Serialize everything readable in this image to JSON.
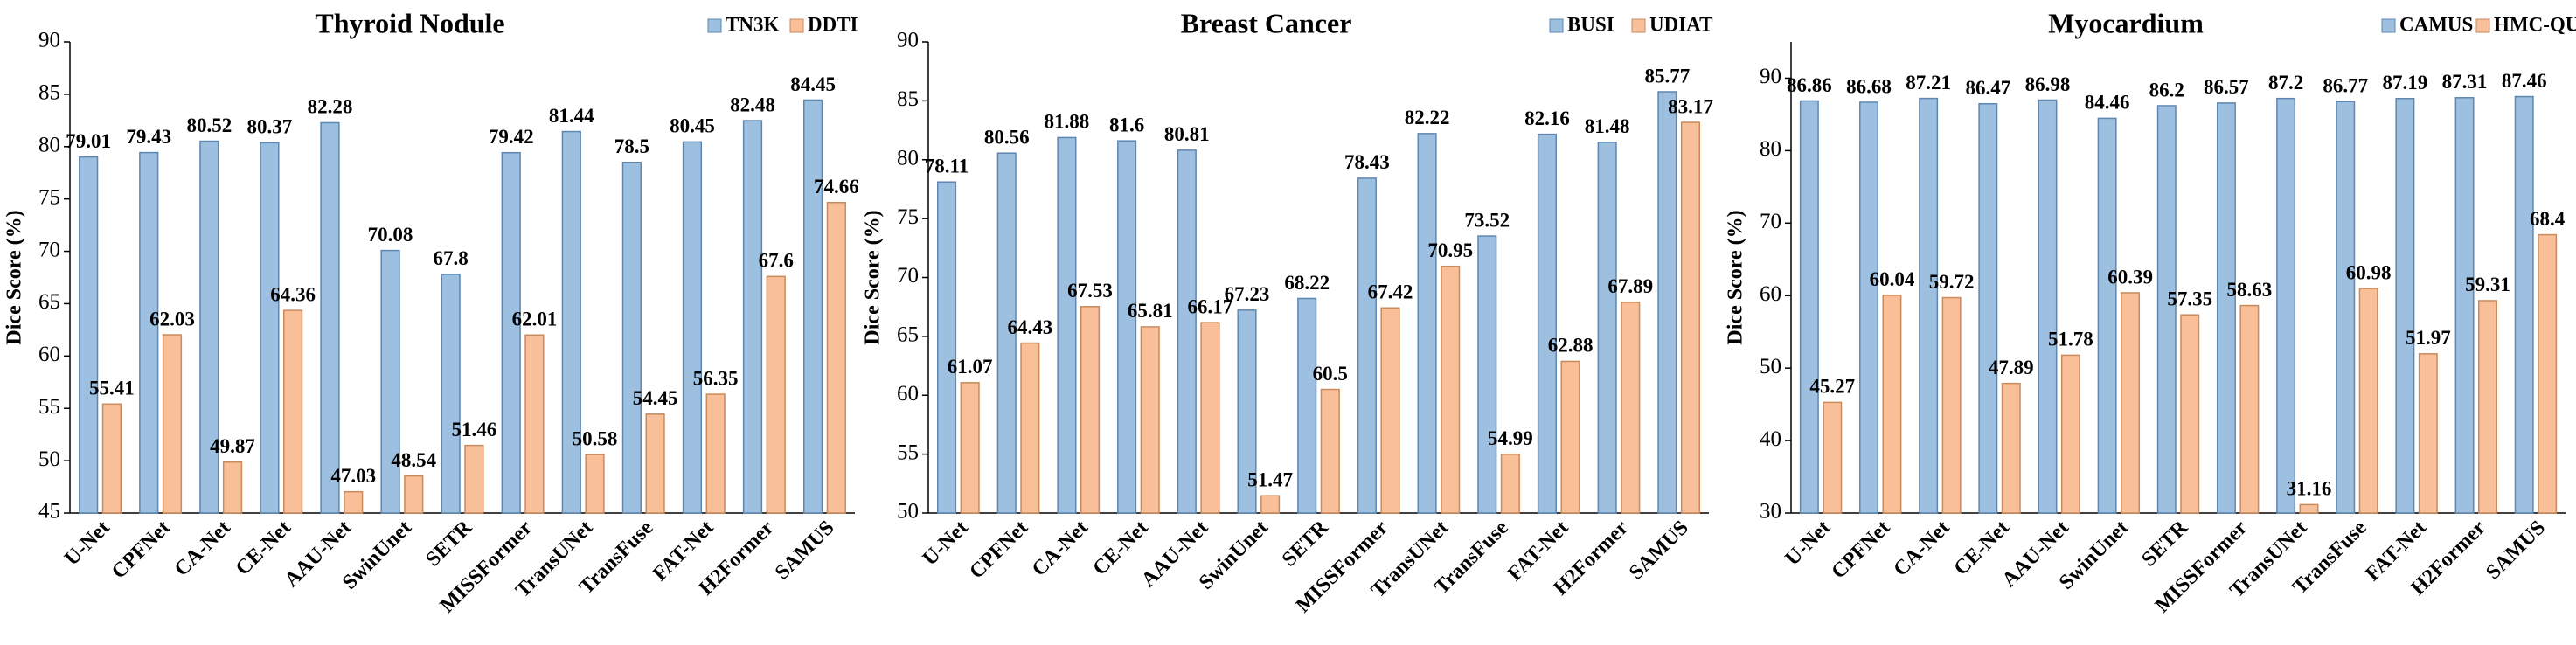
{
  "chart_data": [
    {
      "type": "bar",
      "title": "Thyroid Nodule",
      "y_label": "Dice Score (%)",
      "categories": [
        "U-Net",
        "CPFNet",
        "CA-Net",
        "CE-Net",
        "AAU-Net",
        "SwinUnet",
        "SETR",
        "MISSFormer",
        "TransUNet",
        "TransFuse",
        "FAT-Net",
        "H2Former",
        "SAMUS"
      ],
      "series": [
        {
          "name": "TN3K",
          "color": "#9dc0e0",
          "values": [
            79.01,
            79.43,
            80.52,
            80.37,
            82.28,
            70.08,
            67.8,
            79.42,
            81.44,
            78.5,
            80.45,
            82.48,
            84.45
          ]
        },
        {
          "name": "DDTI",
          "color": "#f8bf98",
          "values": [
            55.41,
            62.03,
            49.87,
            64.36,
            47.03,
            48.54,
            51.46,
            62.01,
            50.58,
            54.45,
            56.35,
            67.6,
            74.66
          ]
        }
      ],
      "ylim": [
        45,
        90
      ],
      "yticks": [
        45,
        50,
        55,
        60,
        65,
        70,
        75,
        80,
        85,
        90
      ],
      "legend": "upper right",
      "grid": false
    },
    {
      "type": "bar",
      "title": "Breast Cancer",
      "y_label": "Dice Score (%)",
      "categories": [
        "U-Net",
        "CPFNet",
        "CA-Net",
        "CE-Net",
        "AAU-Net",
        "SwinUnet",
        "SETR",
        "MISSFormer",
        "TransUNet",
        "TransFuse",
        "FAT-Net",
        "H2Former",
        "SAMUS"
      ],
      "series": [
        {
          "name": "BUSI",
          "color": "#9dc0e0",
          "values": [
            78.11,
            80.56,
            81.88,
            81.6,
            80.81,
            67.23,
            68.22,
            78.43,
            82.22,
            73.52,
            82.16,
            81.48,
            85.77
          ]
        },
        {
          "name": "UDIAT",
          "color": "#f8bf98",
          "values": [
            61.07,
            64.43,
            67.53,
            65.81,
            66.17,
            51.47,
            60.5,
            67.42,
            70.95,
            54.99,
            62.88,
            67.89,
            83.17
          ]
        }
      ],
      "ylim": [
        50,
        90
      ],
      "yticks": [
        50,
        55,
        60,
        65,
        70,
        75,
        80,
        85,
        90
      ],
      "legend": "upper right",
      "grid": false
    },
    {
      "type": "bar",
      "title": "Myocardium",
      "y_label": "Dice Score (%)",
      "categories": [
        "U-Net",
        "CPFNet",
        "CA-Net",
        "CE-Net",
        "AAU-Net",
        "SwinUnet",
        "SETR",
        "MISSFormer",
        "TransUNet",
        "TransFuse",
        "FAT-Net",
        "H2Former",
        "SAMUS"
      ],
      "series": [
        {
          "name": "CAMUS",
          "color": "#9dc0e0",
          "values": [
            86.86,
            86.68,
            87.21,
            86.47,
            86.98,
            84.46,
            86.2,
            86.57,
            87.2,
            86.77,
            87.19,
            87.31,
            87.46
          ]
        },
        {
          "name": "HMC-QU",
          "color": "#f8bf98",
          "values": [
            45.27,
            60.04,
            59.72,
            47.89,
            51.78,
            60.39,
            57.35,
            58.63,
            31.16,
            60.98,
            51.97,
            59.31,
            68.4
          ]
        }
      ],
      "ylim": [
        30,
        95
      ],
      "yticks": [
        30,
        40,
        50,
        60,
        70,
        80,
        90
      ],
      "legend": "upper right",
      "grid": false
    }
  ]
}
